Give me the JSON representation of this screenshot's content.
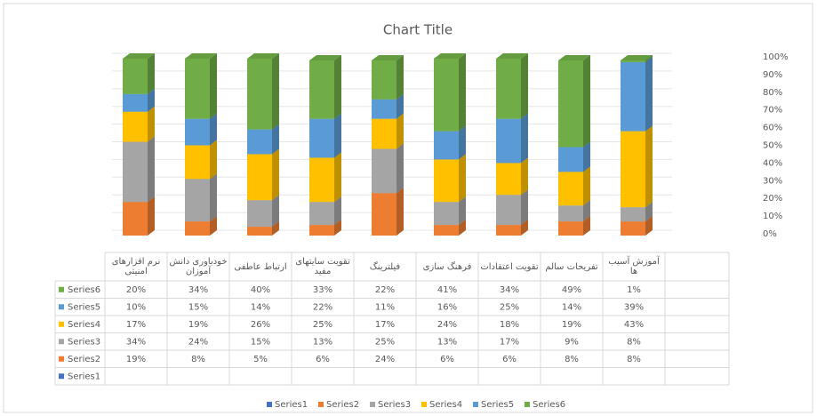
{
  "chart_data": {
    "type": "bar",
    "stacked": true,
    "title": "Chart Title",
    "categories": [
      "نرم افزارهای امنیتی",
      "خودباوری دانش آموزان",
      "ارتباط عاطفی",
      "تقویت سایتهای مفید",
      "فیلترینگ",
      "فرهنگ سازی",
      "تقویت اعتقادات",
      "تفریحات سالم",
      "آموزش آسیب ها"
    ],
    "series": [
      {
        "name": "Series1",
        "color": "#4472c4",
        "values": [
          null,
          null,
          null,
          null,
          null,
          null,
          null,
          null,
          null
        ]
      },
      {
        "name": "Series2",
        "color": "#ed7d31",
        "values": [
          19,
          8,
          5,
          6,
          24,
          6,
          6,
          8,
          8
        ],
        "value_labels": [
          "19%",
          "8%",
          "5%",
          "6%",
          "24%",
          "6%",
          "6%",
          "8%",
          "8%"
        ]
      },
      {
        "name": "Series3",
        "color": "#a5a5a5",
        "values": [
          34,
          24,
          15,
          13,
          25,
          13,
          17,
          9,
          8
        ],
        "value_labels": [
          "34%",
          "24%",
          "15%",
          "13%",
          "25%",
          "13%",
          "17%",
          "9%",
          "8%"
        ]
      },
      {
        "name": "Series4",
        "color": "#ffc000",
        "values": [
          17,
          19,
          26,
          25,
          17,
          24,
          18,
          19,
          43
        ],
        "value_labels": [
          "17%",
          "19%",
          "26%",
          "25%",
          "17%",
          "24%",
          "18%",
          "19%",
          "43%"
        ]
      },
      {
        "name": "Series5",
        "color": "#5b9bd5",
        "values": [
          10,
          15,
          14,
          22,
          11,
          16,
          25,
          14,
          39
        ],
        "value_labels": [
          "10%",
          "15%",
          "14%",
          "22%",
          "11%",
          "16%",
          "25%",
          "14%",
          "39%"
        ]
      },
      {
        "name": "Series6",
        "color": "#70ad47",
        "values": [
          20,
          34,
          40,
          33,
          22,
          41,
          34,
          49,
          1
        ],
        "value_labels": [
          "20%",
          "34%",
          "40%",
          "33%",
          "22%",
          "41%",
          "34%",
          "49%",
          "1%"
        ]
      }
    ],
    "ylim": [
      0,
      100
    ],
    "yticks": [
      {
        "value": 0,
        "label": "0%"
      },
      {
        "value": 10,
        "label": "10%"
      },
      {
        "value": 20,
        "label": "20%"
      },
      {
        "value": 30,
        "label": "30%"
      },
      {
        "value": 40,
        "label": "40%"
      },
      {
        "value": 50,
        "label": "50%"
      },
      {
        "value": 60,
        "label": "60%"
      },
      {
        "value": 70,
        "label": "70%"
      },
      {
        "value": 80,
        "label": "80%"
      },
      {
        "value": 90,
        "label": "90%"
      },
      {
        "value": 100,
        "label": "100%"
      }
    ],
    "grid": true
  }
}
